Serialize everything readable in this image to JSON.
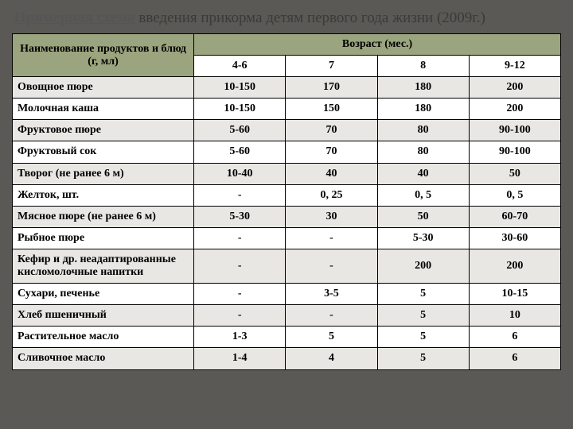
{
  "title": {
    "lead": "Примерная схема",
    "rest": " введения прикорма детям первого года жизни (2009г.)"
  },
  "header": {
    "product": "Наименование продуктов и блюд (г, мл)",
    "age": "Возраст (мес.)",
    "cols": [
      "4-6",
      "7",
      "8",
      "9-12"
    ]
  },
  "rows": [
    {
      "name": "Овощное пюре",
      "vals": [
        "10-150",
        "170",
        "180",
        "200"
      ]
    },
    {
      "name": "Молочная каша",
      "vals": [
        "10-150",
        "150",
        "180",
        "200"
      ]
    },
    {
      "name": "Фруктовое пюре",
      "vals": [
        "5-60",
        "70",
        "80",
        "90-100"
      ]
    },
    {
      "name": "Фруктовый сок",
      "vals": [
        "5-60",
        "70",
        "80",
        "90-100"
      ]
    },
    {
      "name": "Творог (не ранее 6 м)",
      "vals": [
        "10-40",
        "40",
        "40",
        "50"
      ]
    },
    {
      "name": "Желток, шт.",
      "vals": [
        "-",
        "0, 25",
        "0, 5",
        "0, 5"
      ]
    },
    {
      "name": "Мясное пюре (не ранее 6 м)",
      "vals": [
        "5-30",
        "30",
        "50",
        "60-70"
      ]
    },
    {
      "name": "Рыбное пюре",
      "vals": [
        "-",
        "-",
        "5-30",
        "30-60"
      ]
    },
    {
      "name": "Кефир и др. неадаптированные кисломолочные напитки",
      "vals": [
        "-",
        "-",
        "200",
        "200"
      ]
    },
    {
      "name": "Сухари, печенье",
      "vals": [
        "-",
        "3-5",
        "5",
        "10-15"
      ]
    },
    {
      "name": "Хлеб пшеничный",
      "vals": [
        "-",
        "-",
        "5",
        "10"
      ]
    },
    {
      "name": "Растительное масло",
      "vals": [
        "1-3",
        "5",
        "5",
        "6"
      ]
    },
    {
      "name": "Сливочное масло",
      "vals": [
        "1-4",
        "4",
        "5",
        "6"
      ]
    }
  ],
  "colors": {
    "page_bg": "#5b5955",
    "header_bg": "#9aa47e",
    "row_alt_bg": "#e9e7e3",
    "border": "#000000",
    "text": "#000000"
  }
}
